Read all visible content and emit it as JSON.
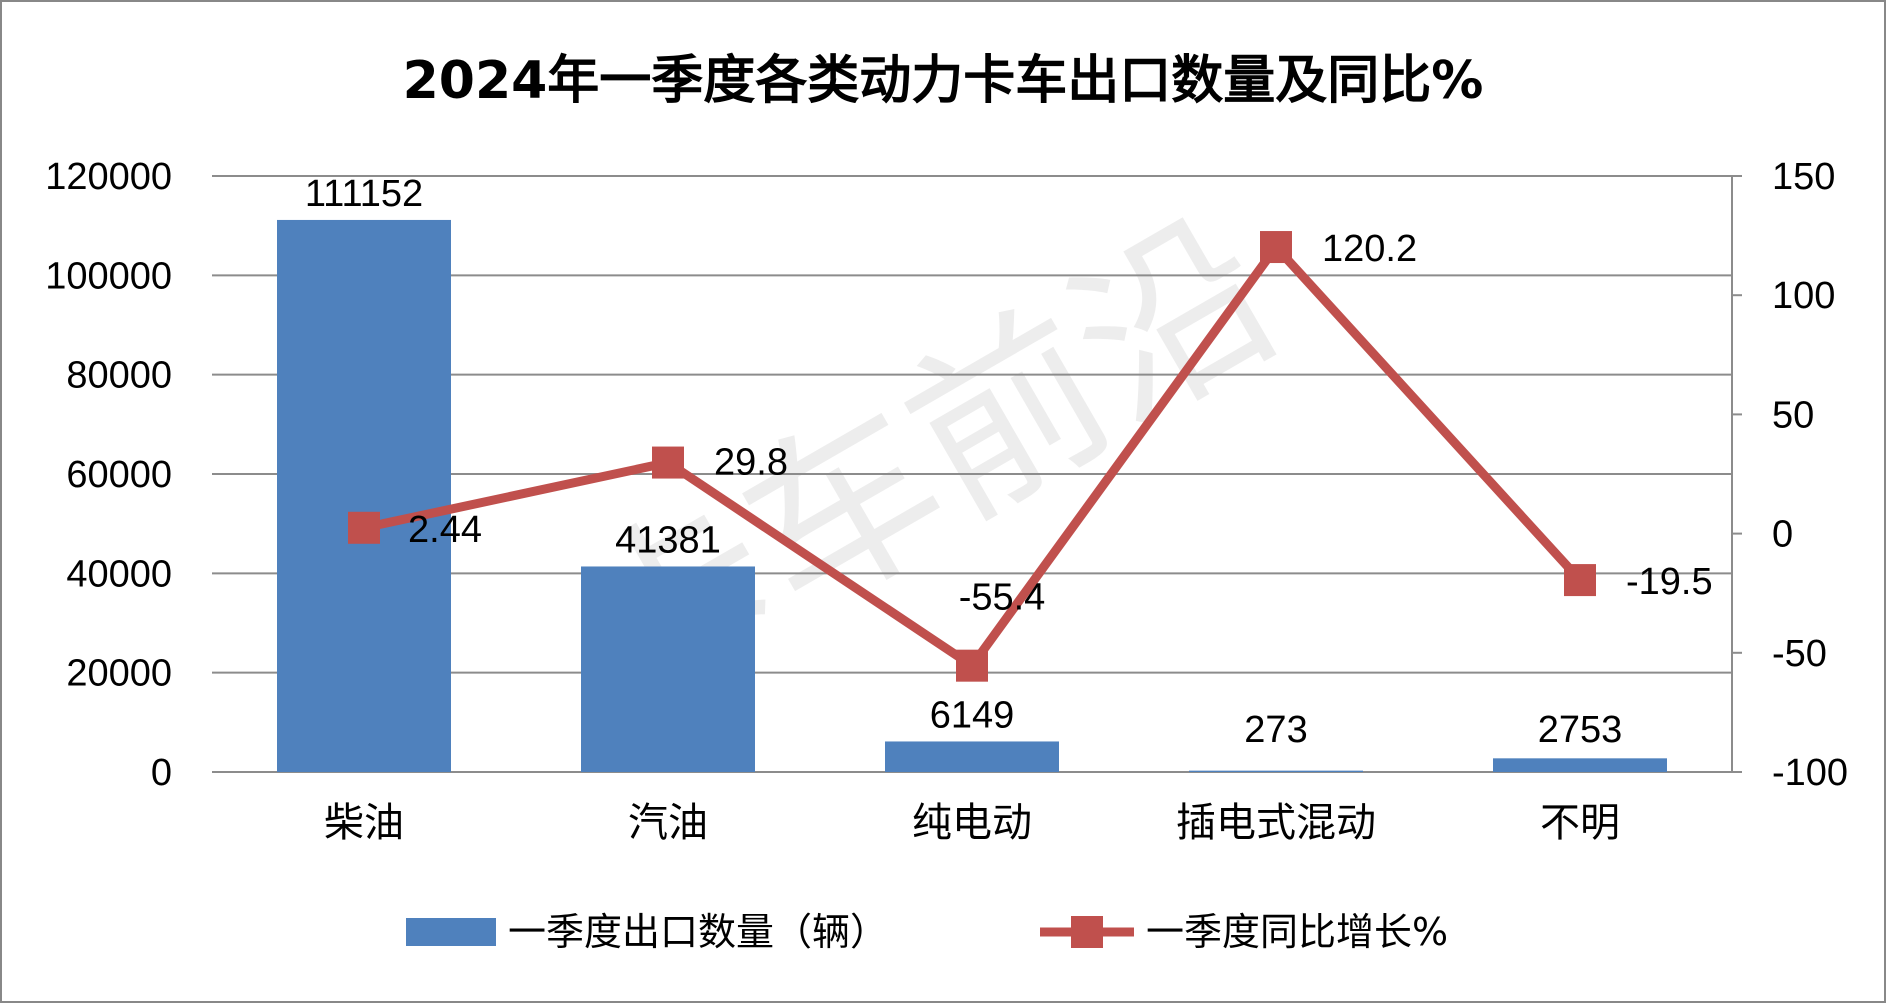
{
  "watermark": "卡车前沿",
  "chart_data": {
    "type": "bar",
    "title": "2024年一季度各类动力卡车出口数量及同比%",
    "categories": [
      "柴油",
      "汽油",
      "纯电动",
      "插电式混动",
      "不明"
    ],
    "series": [
      {
        "name": "一季度出口数量（辆）",
        "type": "bar",
        "axis": "left",
        "color": "#4F81BD",
        "values": [
          111152,
          41381,
          6149,
          273,
          2753
        ],
        "labels": [
          "111152",
          "41381",
          "6149",
          "273",
          "2753"
        ]
      },
      {
        "name": "一季度同比增长%",
        "type": "line",
        "axis": "right",
        "color": "#C0504D",
        "marker": "square",
        "values": [
          2.44,
          29.8,
          -55.4,
          120.2,
          -19.5
        ],
        "labels": [
          "2.44",
          "29.8",
          "-55.4",
          "120.2",
          "-19.5"
        ]
      }
    ],
    "y_left": {
      "min": 0,
      "max": 120000,
      "ticks": [
        "0",
        "20000",
        "40000",
        "60000",
        "80000",
        "100000",
        "120000"
      ]
    },
    "y_right": {
      "min": -100,
      "max": 150,
      "ticks": [
        "-100",
        "-50",
        "0",
        "50",
        "100",
        "150"
      ]
    },
    "grid": true,
    "legend_position": "bottom"
  }
}
